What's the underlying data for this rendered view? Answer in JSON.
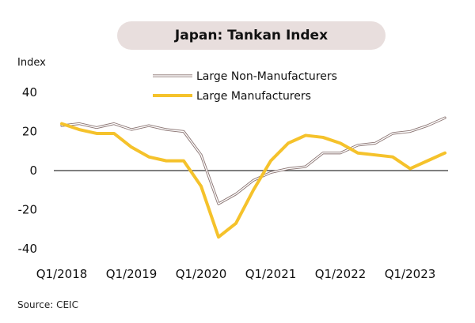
{
  "chart_data": {
    "type": "line",
    "title": "Japan: Tankan Index",
    "ylabel": "Index",
    "source": "Source: CEIC",
    "ylim": [
      -40,
      40
    ],
    "yticks": [
      40,
      20,
      0,
      -20,
      -40
    ],
    "xtick_labels": [
      "Q1/2018",
      "Q1/2019",
      "Q1/2020",
      "Q1/2021",
      "Q1/2022",
      "Q1/2023"
    ],
    "x": [
      "Q1/2018",
      "Q2/2018",
      "Q3/2018",
      "Q4/2018",
      "Q1/2019",
      "Q2/2019",
      "Q3/2019",
      "Q4/2019",
      "Q1/2020",
      "Q2/2020",
      "Q3/2020",
      "Q4/2020",
      "Q1/2021",
      "Q2/2021",
      "Q3/2021",
      "Q4/2021",
      "Q1/2022",
      "Q2/2022",
      "Q3/2022",
      "Q4/2022",
      "Q1/2023",
      "Q2/2023",
      "Q3/2023",
      "Q4/2023"
    ],
    "series": [
      {
        "name": "Large Non-Manufacturers",
        "color": "#c9b6b4",
        "values": [
          23,
          24,
          22,
          24,
          21,
          23,
          21,
          20,
          8,
          -17,
          -12,
          -5,
          -1,
          1,
          2,
          9,
          9,
          13,
          14,
          19,
          20,
          23,
          27,
          null
        ]
      },
      {
        "name": "Large Manufacturers",
        "color": "#f5c22b",
        "values": [
          24,
          21,
          19,
          19,
          12,
          7,
          5,
          5,
          -8,
          -34,
          -27,
          -10,
          5,
          14,
          18,
          17,
          14,
          9,
          8,
          7,
          1,
          5,
          9,
          null
        ]
      }
    ],
    "grid": false,
    "zero_line": true,
    "legend_position": "top-center"
  }
}
